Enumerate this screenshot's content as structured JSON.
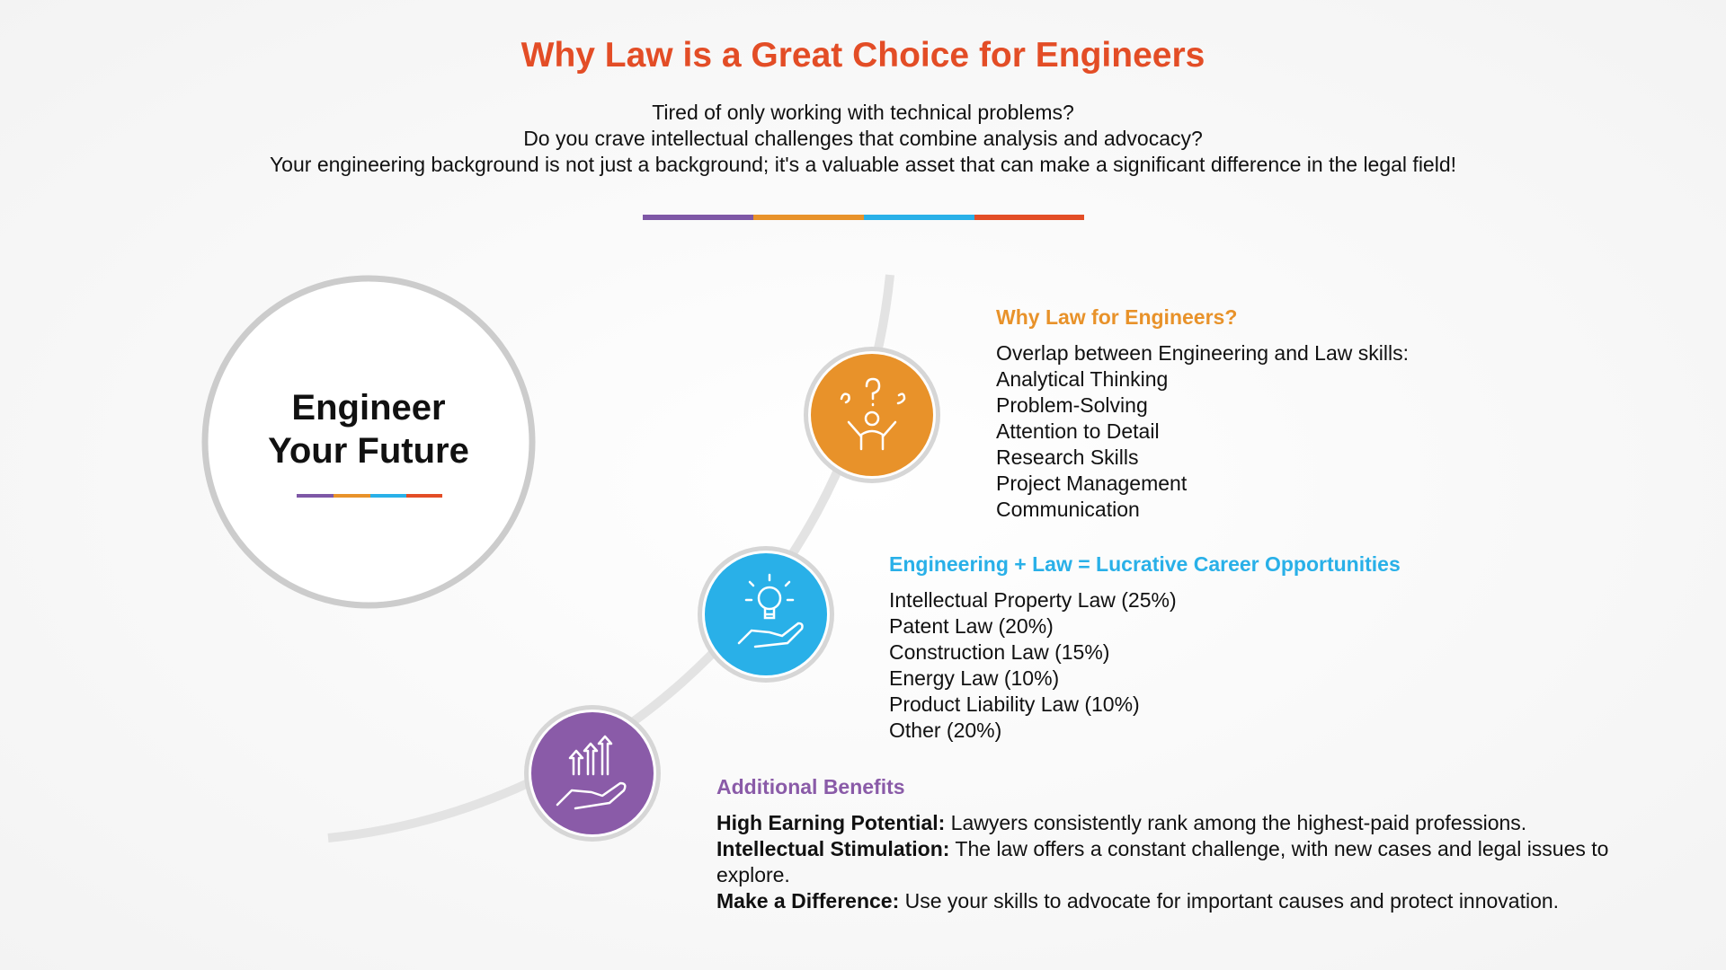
{
  "header": {
    "title": "Why Law is a Great Choice for Engineers",
    "subtitle_lines": [
      "Tired of only working with technical problems?",
      "Do you crave intellectual challenges that combine analysis and advocacy?",
      "Your engineering background is not just a background; it's a valuable asset that can make a significant difference in the legal field!"
    ]
  },
  "center": {
    "lines": [
      "Engineer",
      "Your Future"
    ]
  },
  "sections": [
    {
      "heading": "Why Law for Engineers?",
      "items": [
        "Overlap between Engineering and Law skills:",
        "Analytical Thinking",
        "Problem-Solving",
        "Attention to Detail",
        "Research Skills",
        "Project Management",
        "Communication"
      ]
    },
    {
      "heading": "Engineering + Law = Lucrative Career Opportunities",
      "items": [
        "Intellectual Property Law (25%)",
        "Patent Law (20%)",
        "Construction Law (15%)",
        "Energy Law (10%)",
        "Product Liability Law (10%)",
        "Other (20%)"
      ]
    },
    {
      "heading": "Additional Benefits",
      "items": [
        {
          "label": "High Earning Potential:",
          "text": "Lawyers consistently rank among the highest-paid professions."
        },
        {
          "label": "Intellectual Stimulation:",
          "text": "The law offers a constant challenge, with new cases and legal issues to explore."
        },
        {
          "label": "Make a Difference:",
          "text": "Use your skills to advocate for important causes and protect innovation."
        }
      ]
    }
  ]
}
